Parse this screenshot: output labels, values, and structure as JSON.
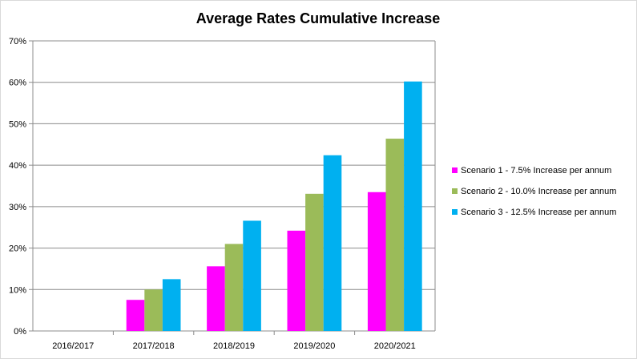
{
  "chart_data": {
    "type": "bar",
    "title": "Average Rates Cumulative Increase",
    "xlabel": "",
    "ylabel": "",
    "categories": [
      "2016/2017",
      "2017/2018",
      "2018/2019",
      "2019/2020",
      "2020/2021"
    ],
    "series": [
      {
        "name": "Scenario 1 - 7.5% Increase per annum",
        "color": "#ff00ff",
        "values": [
          0,
          7.5,
          15.6,
          24.2,
          33.5
        ]
      },
      {
        "name": "Scenario 2 - 10.0% Increase per annum",
        "color": "#9bbb59",
        "values": [
          0,
          10.0,
          21.0,
          33.1,
          46.4
        ]
      },
      {
        "name": "Scenario 3 - 12.5% Increase per annum",
        "color": "#00b0f0",
        "values": [
          0,
          12.5,
          26.6,
          42.4,
          60.2
        ]
      }
    ],
    "ylim": [
      0,
      70
    ],
    "yticks": [
      "0%",
      "10%",
      "20%",
      "30%",
      "40%",
      "50%",
      "60%",
      "70%"
    ],
    "grid": true,
    "legend_position": "right"
  }
}
